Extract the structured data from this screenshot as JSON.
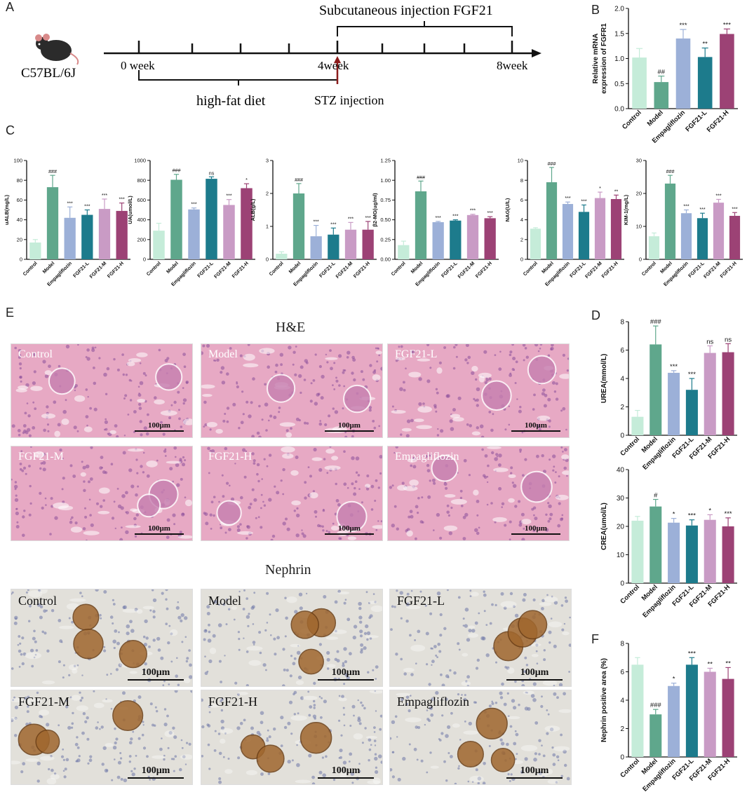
{
  "panel_labels": {
    "a": "A",
    "b": "B",
    "c": "C",
    "d": "D",
    "e": "E",
    "f": "F"
  },
  "timeline": {
    "strain": "C57BL/6J",
    "fgf21_label": "Subcutaneous injection FGF21",
    "week0": "0 week",
    "week4": "4week",
    "week8": "8week",
    "diet_label": "high-fat diet",
    "stz_label": "STZ injection"
  },
  "he_section": {
    "title": "H&E",
    "scale_bar": "100μm",
    "tiles": [
      "Control",
      "Model",
      "FGF21-L",
      "FGF21-M",
      "FGF21-H",
      "Empagliflozin"
    ]
  },
  "nephrin_section": {
    "title": "Nephrin",
    "scale_bar": "100μm",
    "tiles": [
      "Control",
      "Model",
      "FGF21-L",
      "FGF21-M",
      "FGF21-H",
      "Empagliflozin"
    ]
  },
  "colors": {
    "Control": "#c5ecd9",
    "Model": "#5fa78c",
    "Empagliflozin": "#9cb0d8",
    "FGF21-L": "#1d7b8c",
    "FGF21-M": "#c99bc5",
    "FGF21-H": "#9c4275"
  },
  "chart_data": [
    {
      "id": "B",
      "type": "bar",
      "categories": [
        "Control",
        "Model",
        "Empagliflozin",
        "FGF21-L",
        "FGF21-H"
      ],
      "values": [
        1.02,
        0.53,
        1.4,
        1.03,
        1.49
      ],
      "errors": [
        0.18,
        0.12,
        0.18,
        0.18,
        0.1
      ],
      "significance": [
        "",
        "##",
        "***",
        "**",
        "***"
      ],
      "ylabel": "Relative mRNA\nexpression of FGFR1",
      "ylim": [
        0,
        2.0
      ],
      "yticks": [
        "0.0",
        "0.5",
        "1.0",
        "1.5",
        "2.0"
      ]
    },
    {
      "id": "C1",
      "type": "bar",
      "categories": [
        "Control",
        "Model",
        "Empagliflozin",
        "FGF21-L",
        "FGF21-M",
        "FGF21-H"
      ],
      "values": [
        17,
        73,
        42,
        45,
        51,
        49
      ],
      "errors": [
        3,
        12,
        11,
        5,
        10,
        8
      ],
      "significance": [
        "",
        "###",
        "***",
        "***",
        "***",
        "***"
      ],
      "ylabel": "uALB(mg/L)",
      "ylim": [
        0,
        100
      ],
      "yticks": [
        "0",
        "20",
        "40",
        "60",
        "80",
        "100"
      ]
    },
    {
      "id": "C2",
      "type": "bar",
      "categories": [
        "Control",
        "Model",
        "Empagliflozin",
        "FGF21-L",
        "FGF21-M",
        "FGF21-H"
      ],
      "values": [
        290,
        805,
        505,
        815,
        550,
        720
      ],
      "errors": [
        75,
        55,
        15,
        20,
        55,
        45
      ],
      "significance": [
        "",
        "###",
        "***",
        "ns",
        "***",
        "*"
      ],
      "ylabel": "UA(umol/L)",
      "ylim": [
        0,
        1000
      ],
      "yticks": [
        "0",
        "200",
        "400",
        "600",
        "800",
        "1000"
      ]
    },
    {
      "id": "C3",
      "type": "bar",
      "categories": [
        "Control",
        "Model",
        "Empagliflozin",
        "FGF21-L",
        "FGF21-M",
        "FGF21-H"
      ],
      "values": [
        0.17,
        2.0,
        0.7,
        0.75,
        0.9,
        0.9
      ],
      "errors": [
        0.06,
        0.3,
        0.33,
        0.2,
        0.22,
        0.25
      ],
      "significance": [
        "",
        "###",
        "***",
        "***",
        "***",
        "***"
      ],
      "ylabel": "ALB(g/L)",
      "ylim": [
        0,
        3
      ],
      "yticks": [
        "0",
        "1",
        "2",
        "3"
      ]
    },
    {
      "id": "C4",
      "type": "bar",
      "categories": [
        "Control",
        "Model",
        "Empagliflozin",
        "FGF21-L",
        "FGF21-M",
        "FGF21-H"
      ],
      "values": [
        0.18,
        0.86,
        0.47,
        0.49,
        0.56,
        0.52
      ],
      "errors": [
        0.05,
        0.13,
        0.01,
        0.01,
        0.01,
        0.02
      ],
      "significance": [
        "",
        "###",
        "***",
        "***",
        "***",
        "***"
      ],
      "ylabel": "β2-MG(ug/ml)",
      "ylim": [
        0,
        1.25
      ],
      "yticks": [
        "0.00",
        "0.25",
        "0.50",
        "0.75",
        "1.00",
        "1.25"
      ]
    },
    {
      "id": "C5",
      "type": "bar",
      "categories": [
        "Control",
        "Model",
        "Empagliflozin",
        "FGF21-L",
        "FGF21-M",
        "FGF21-H"
      ],
      "values": [
        3.1,
        7.8,
        5.6,
        4.8,
        6.2,
        6.1
      ],
      "errors": [
        0.1,
        1.5,
        0.2,
        0.7,
        0.6,
        0.4
      ],
      "significance": [
        "",
        "###",
        "***",
        "***",
        "*",
        "**"
      ],
      "ylabel": "NAG(U/L)",
      "ylim": [
        0,
        10
      ],
      "yticks": [
        "0",
        "2",
        "4",
        "6",
        "8",
        "10"
      ]
    },
    {
      "id": "C6",
      "type": "bar",
      "categories": [
        "Control",
        "Model",
        "Empagliflozin",
        "FGF21-L",
        "FGF21-M",
        "FGF21-H"
      ],
      "values": [
        7,
        23,
        14,
        12.5,
        17.2,
        13.2
      ],
      "errors": [
        1,
        2.5,
        1,
        1.5,
        1,
        1
      ],
      "significance": [
        "",
        "###",
        "***",
        "***",
        "***",
        "***"
      ],
      "ylabel": "KIM-1(mg/L)",
      "ylim": [
        0,
        30
      ],
      "yticks": [
        "0",
        "10",
        "20",
        "30"
      ]
    },
    {
      "id": "D1",
      "type": "bar",
      "categories": [
        "Control",
        "Model",
        "Empagliflozin",
        "FGF21-L",
        "FGF21-M",
        "FGF21-H"
      ],
      "values": [
        1.3,
        6.4,
        4.4,
        3.2,
        5.8,
        5.85
      ],
      "errors": [
        0.45,
        1.3,
        0.15,
        0.8,
        0.5,
        0.6
      ],
      "significance": [
        "",
        "###",
        "***",
        "***",
        "ns",
        "ns"
      ],
      "ylabel": "UREA(mmol/L)",
      "ylim": [
        0,
        8
      ],
      "yticks": [
        "0",
        "2",
        "4",
        "6",
        "8"
      ]
    },
    {
      "id": "D2",
      "type": "bar",
      "categories": [
        "Control",
        "Model",
        "Empagliflozin",
        "FGF21-L",
        "FGF21-M",
        "FGF21-H"
      ],
      "values": [
        22,
        27,
        21.3,
        20.3,
        22.3,
        20
      ],
      "errors": [
        1.5,
        2.5,
        1.5,
        2.0,
        1.8,
        3.0
      ],
      "significance": [
        "",
        "#",
        "*",
        "***",
        "*",
        "***"
      ],
      "ylabel": "CREA(umol/L)",
      "ylim": [
        0,
        40
      ],
      "yticks": [
        "0",
        "10",
        "20",
        "30",
        "40"
      ]
    },
    {
      "id": "F",
      "type": "bar",
      "categories": [
        "Control",
        "Model",
        "Empagliflozin",
        "FGF21-L",
        "FGF21-M",
        "FGF21-H"
      ],
      "values": [
        6.5,
        3.0,
        5.0,
        6.5,
        6.0,
        5.5
      ],
      "errors": [
        0.5,
        0.35,
        0.2,
        0.5,
        0.25,
        0.8
      ],
      "significance": [
        "",
        "###",
        "*",
        "***",
        "**",
        "**"
      ],
      "ylabel": "Nephrin positive area (%)",
      "ylim": [
        0,
        8
      ],
      "yticks": [
        "0",
        "2",
        "4",
        "6",
        "8"
      ]
    }
  ]
}
